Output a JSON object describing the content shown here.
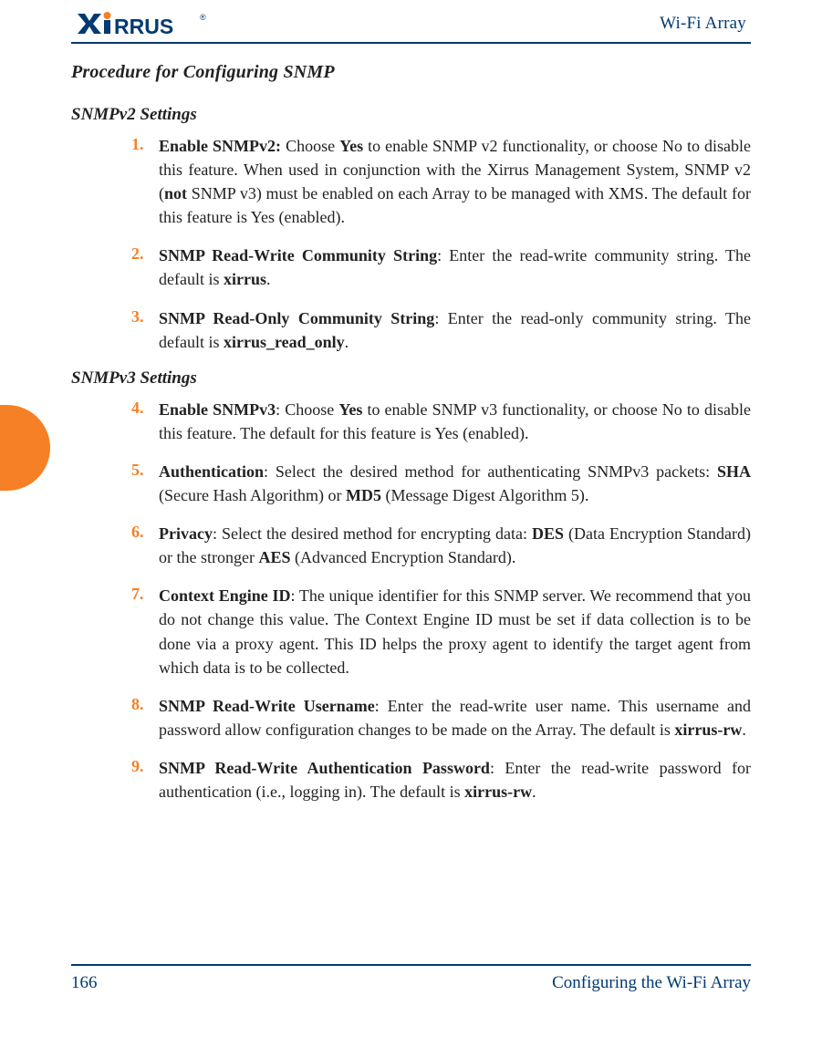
{
  "header": {
    "logo_text": "XIRRUS",
    "right_text": "Wi-Fi Array"
  },
  "colors": {
    "accent_orange": "#f58025",
    "brand_blue": "#003a70",
    "text": "#222222",
    "rule": "#003a70"
  },
  "headings": {
    "h1": "Procedure for Configuring SNMP",
    "h2a": "SNMPv2 Settings",
    "h2b": "SNMPv3 Settings"
  },
  "items_v2": [
    {
      "n": "1.",
      "html": "<b>Enable SNMPv2:</b> Choose <b>Yes</b> to enable SNMP v2 functionality, or choose No to disable this feature. When used in conjunction with the Xirrus Management System, SNMP v2 (<b>not</b> SNMP v3) must be enabled on each Array to be managed with XMS. The default for this feature is Yes (enabled)."
    },
    {
      "n": "2.",
      "html": "<b>SNMP Read-Write Community String</b>: Enter the read-write community string. The default is <b>xirrus</b>."
    },
    {
      "n": "3.",
      "html": "<b>SNMP Read-Only Community String</b>: Enter the read-only community string. The default is <b>xirrus_read_only</b>."
    }
  ],
  "items_v3": [
    {
      "n": "4.",
      "html": "<b>Enable SNMPv3</b>: Choose <b>Yes</b> to enable SNMP v3 functionality, or choose No to disable this feature. The default for this feature is Yes (enabled)."
    },
    {
      "n": "5.",
      "html": "<b>Authentication</b>: Select the desired method for authenticating SNMPv3 packets: <b>SHA</b> (Secure Hash Algorithm) or <b>MD5</b> (Message Digest Algorithm 5)."
    },
    {
      "n": "6.",
      "html": "<b>Privacy</b>: Select the desired method for encrypting data: <b>DES</b> (Data Encryption Standard) or the stronger <b>AES</b> (Advanced Encryption Standard)."
    },
    {
      "n": "7.",
      "html": "<b>Context Engine ID</b>: The unique identifier for this SNMP server. We recommend that you do not change this value. The Context Engine ID must be set if data collection is to be done via a proxy agent. This ID helps the proxy agent to identify the target agent from which data is to be collected."
    },
    {
      "n": "8.",
      "html": "<b>SNMP Read-Write Username</b>: Enter the read-write user name. This username and password allow configuration changes to be made on the Array. The default is <b>xirrus-rw</b>."
    },
    {
      "n": "9.",
      "html": "<b>SNMP Read-Write Authentication Password</b>: Enter the read-write password for authentication (i.e., logging in). The default is <b>xirrus-rw</b>."
    }
  ],
  "footer": {
    "page_number": "166",
    "section": "Configuring the Wi-Fi Array"
  }
}
